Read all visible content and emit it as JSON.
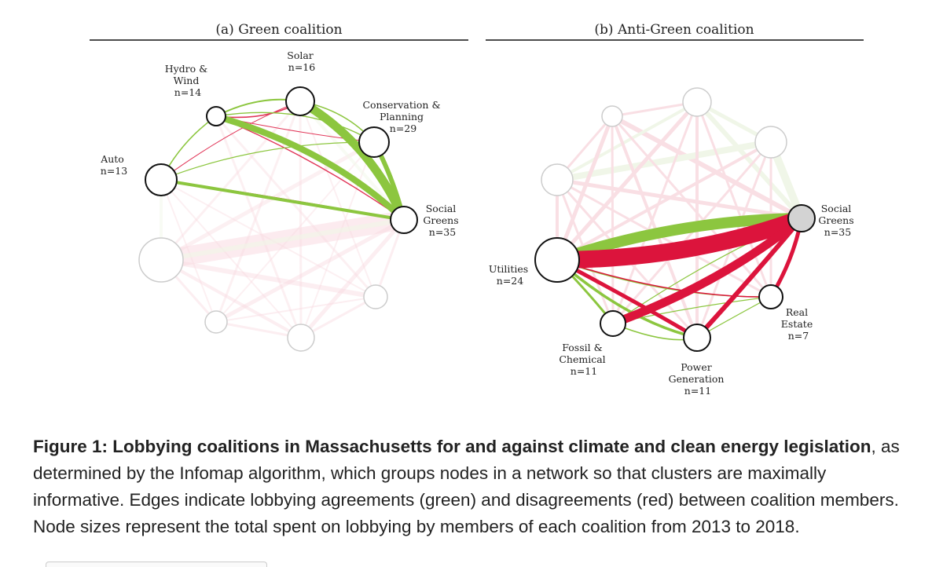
{
  "figure": {
    "panels": [
      {
        "id": "green",
        "title": "(a) Green coalition",
        "nodes": [
          {
            "id": "solar",
            "lines": [
              "Solar",
              "n=16"
            ],
            "muted": false
          },
          {
            "id": "conservation",
            "lines": [
              "Conservation &",
              "Planning",
              "n=29"
            ],
            "muted": false
          },
          {
            "id": "social_greens",
            "lines": [
              "Social",
              "Greens",
              "n=35"
            ],
            "muted": false
          },
          {
            "id": "n3",
            "lines": [],
            "muted": true
          },
          {
            "id": "n4",
            "lines": [],
            "muted": true
          },
          {
            "id": "n5",
            "lines": [],
            "muted": true
          },
          {
            "id": "n6",
            "lines": [],
            "muted": true
          },
          {
            "id": "auto",
            "lines": [
              "Auto",
              "n=13"
            ],
            "muted": false
          },
          {
            "id": "hydro_wind",
            "lines": [
              "Hydro &",
              "Wind",
              "n=14"
            ],
            "muted": false
          }
        ]
      },
      {
        "id": "anti_green",
        "title": "(b) Anti-Green coalition",
        "nodes": [
          {
            "id": "m0",
            "lines": [],
            "muted": true
          },
          {
            "id": "m1",
            "lines": [],
            "muted": true
          },
          {
            "id": "social_greens",
            "lines": [
              "Social",
              "Greens",
              "n=35"
            ],
            "muted": false,
            "fill": "#d3d3d3"
          },
          {
            "id": "real_estate",
            "lines": [
              "Real",
              "Estate",
              "n=7"
            ],
            "muted": false
          },
          {
            "id": "power_generation",
            "lines": [
              "Power",
              "Generation",
              "n=11"
            ],
            "muted": false
          },
          {
            "id": "fossil_chemical",
            "lines": [
              "Fossil &",
              "Chemical",
              "n=11"
            ],
            "muted": false
          },
          {
            "id": "utilities",
            "lines": [
              "Utilities",
              "n=24"
            ],
            "muted": false
          },
          {
            "id": "m7",
            "lines": [],
            "muted": true
          },
          {
            "id": "m8",
            "lines": [],
            "muted": true
          }
        ]
      }
    ]
  },
  "colors": {
    "agreement": "#8cc63f",
    "disagreement": "#dc143c",
    "node_stroke": "#111111",
    "muted_stroke": "#c8c8c8"
  },
  "caption": {
    "bold": "Figure 1: Lobbying coalitions in Massachusetts for and against climate and clean energy legislation",
    "rest": ", as determined by the Infomap algorithm, which groups nodes in a network so that clusters are maximally informative. Edges indicate lobbying agreements (green) and disagreements (red) between coalition members. Node sizes represent the total spent on lobbying by members of each coalition from 2013 to 2018."
  }
}
